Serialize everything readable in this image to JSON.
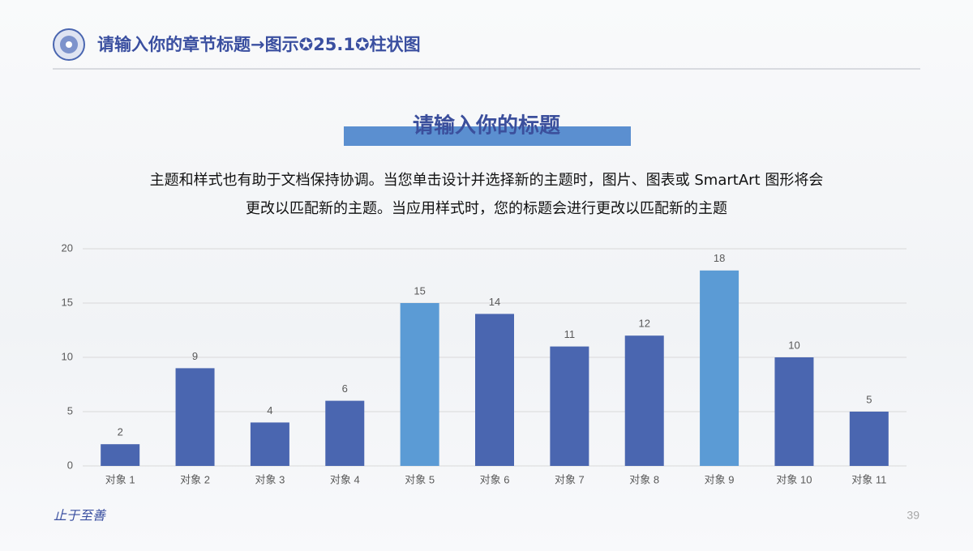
{
  "header": {
    "title": "请输入你的章节标题→图示✪25.1✪柱状图"
  },
  "subtitle": "请输入你的标题",
  "paragraph": [
    "主题和样式也有助于文档保持协调。当您单击设计并选择新的主题时，图片、图表或 SmartArt 图形将会",
    "更改以匹配新的主题。当应用样式时，您的标题会进行更改以匹配新的主题"
  ],
  "chart_data": {
    "type": "bar",
    "categories": [
      "对象 1",
      "对象 2",
      "对象 3",
      "对象 4",
      "对象 5",
      "对象 6",
      "对象 7",
      "对象 8",
      "对象 9",
      "对象 10",
      "对象 11"
    ],
    "values": [
      2,
      9,
      4,
      6,
      15,
      14,
      11,
      12,
      18,
      10,
      5
    ],
    "colors": [
      "#4a66b0",
      "#4a66b0",
      "#4a66b0",
      "#4a66b0",
      "#5b9bd5",
      "#4a66b0",
      "#4a66b0",
      "#4a66b0",
      "#5b9bd5",
      "#4a66b0",
      "#4a66b0"
    ],
    "ylim": [
      0,
      20
    ],
    "yticks": [
      0,
      5,
      10,
      15,
      20
    ],
    "grid": true
  },
  "footer": {
    "motto": "止于至善",
    "page": "39"
  }
}
